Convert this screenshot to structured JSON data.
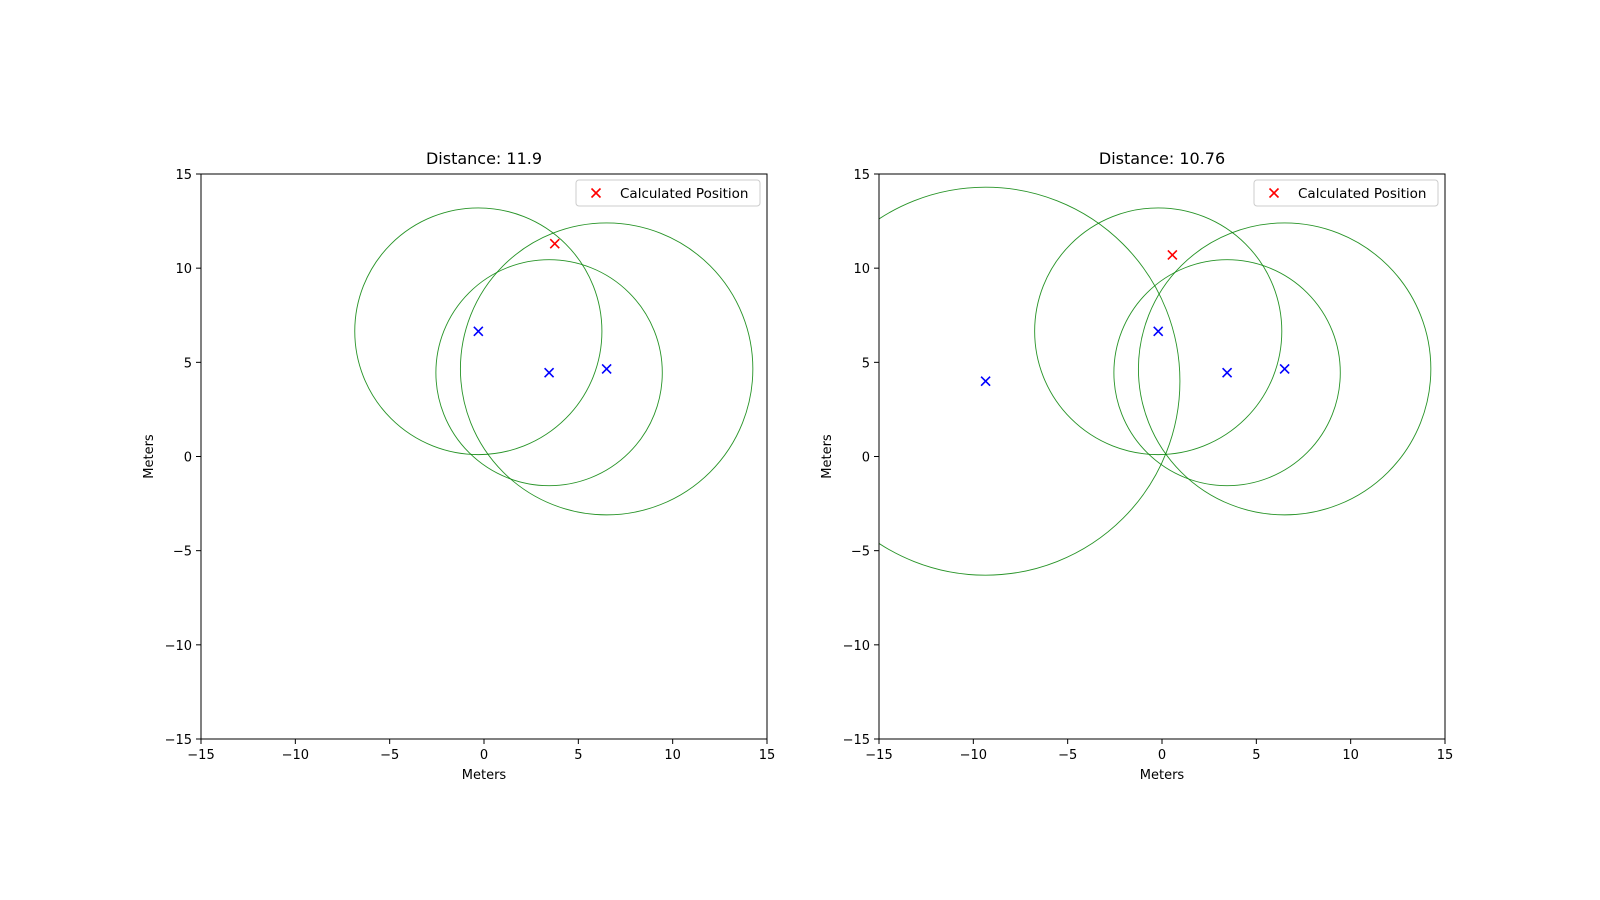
{
  "chart_data": [
    {
      "type": "scatter",
      "title": "Distance: 11.9",
      "xlabel": "Meters",
      "ylabel": "Meters",
      "xlim": [
        -15,
        15
      ],
      "ylim": [
        -15,
        15
      ],
      "xticks": [
        -15,
        -10,
        -5,
        0,
        5,
        10,
        15
      ],
      "yticks": [
        -15,
        -10,
        -5,
        0,
        5,
        10,
        15
      ],
      "grid": false,
      "legend": {
        "placement": "upper-right",
        "entries": [
          {
            "label": "Calculated Position",
            "marker": "x",
            "color": "#ff0000"
          }
        ]
      },
      "anchors": [
        {
          "x": -0.3,
          "y": 6.65
        },
        {
          "x": 3.45,
          "y": 4.45
        },
        {
          "x": 6.5,
          "y": 4.65
        }
      ],
      "circles": [
        {
          "cx": -0.3,
          "cy": 6.65,
          "r": 6.55
        },
        {
          "cx": 3.45,
          "cy": 4.45,
          "r": 6.0
        },
        {
          "cx": 6.5,
          "cy": 4.65,
          "r": 7.75
        }
      ],
      "calculated_position": {
        "x": 3.75,
        "y": 11.3
      },
      "colors": {
        "anchor": "#0000ff",
        "position": "#ff0000",
        "circle": "#008000"
      }
    },
    {
      "type": "scatter",
      "title": "Distance: 10.76",
      "xlabel": "Meters",
      "ylabel": "Meters",
      "xlim": [
        -15,
        15
      ],
      "ylim": [
        -15,
        15
      ],
      "xticks": [
        -15,
        -10,
        -5,
        0,
        5,
        10,
        15
      ],
      "yticks": [
        -15,
        -10,
        -5,
        0,
        5,
        10,
        15
      ],
      "grid": false,
      "legend": {
        "placement": "upper-right",
        "entries": [
          {
            "label": "Calculated Position",
            "marker": "x",
            "color": "#ff0000"
          }
        ]
      },
      "anchors": [
        {
          "x": -9.35,
          "y": 4.0
        },
        {
          "x": -0.2,
          "y": 6.65
        },
        {
          "x": 3.45,
          "y": 4.45
        },
        {
          "x": 6.5,
          "y": 4.65
        }
      ],
      "circles": [
        {
          "cx": -9.35,
          "cy": 4.0,
          "r": 10.3
        },
        {
          "cx": -0.2,
          "cy": 6.65,
          "r": 6.55
        },
        {
          "cx": 3.45,
          "cy": 4.45,
          "r": 6.0
        },
        {
          "cx": 6.5,
          "cy": 4.65,
          "r": 7.75
        }
      ],
      "calculated_position": {
        "x": 0.55,
        "y": 10.7
      },
      "colors": {
        "anchor": "#0000ff",
        "position": "#ff0000",
        "circle": "#008000"
      }
    }
  ]
}
